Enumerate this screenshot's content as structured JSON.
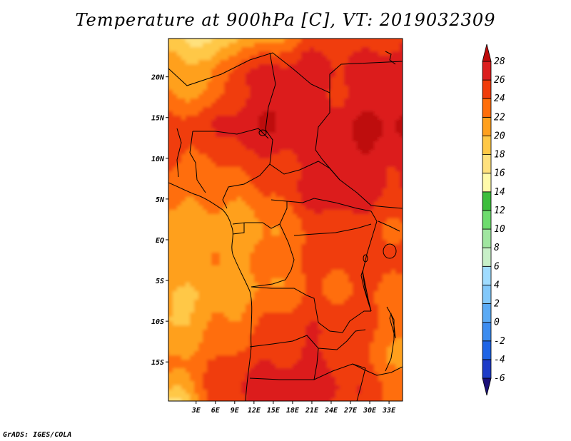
{
  "title": "Temperature at 900hPa [C], VT: 2019032309",
  "credit": "GrADS: IGES/COLA",
  "map": {
    "lon_range": [
      -1.3,
      35.1
    ],
    "lat_range": [
      -19.8,
      24.7
    ],
    "lon_ticks": [
      {
        "v": 3,
        "label": "3E"
      },
      {
        "v": 6,
        "label": "6E"
      },
      {
        "v": 9,
        "label": "9E"
      },
      {
        "v": 12,
        "label": "12E"
      },
      {
        "v": 15,
        "label": "15E"
      },
      {
        "v": 18,
        "label": "18E"
      },
      {
        "v": 21,
        "label": "21E"
      },
      {
        "v": 24,
        "label": "24E"
      },
      {
        "v": 27,
        "label": "27E"
      },
      {
        "v": 30,
        "label": "30E"
      },
      {
        "v": 33,
        "label": "33E"
      }
    ],
    "lat_ticks": [
      {
        "v": 20,
        "label": "20N"
      },
      {
        "v": 15,
        "label": "15N"
      },
      {
        "v": 10,
        "label": "10N"
      },
      {
        "v": 5,
        "label": "5N"
      },
      {
        "v": 0,
        "label": "EQ"
      },
      {
        "v": -5,
        "label": "5S"
      },
      {
        "v": -10,
        "label": "10S"
      },
      {
        "v": -15,
        "label": "15S"
      }
    ]
  },
  "colorbar": {
    "levels": [
      "-6",
      "-4",
      "-2",
      "0",
      "2",
      "4",
      "6",
      "8",
      "10",
      "12",
      "14",
      "16",
      "18",
      "20",
      "22",
      "24",
      "26",
      "28"
    ],
    "colors": [
      "#1a0f78",
      "#1e3cc8",
      "#1e64e6",
      "#3c8cf0",
      "#5aaaf5",
      "#82c8fa",
      "#a0dcff",
      "#c8f0c8",
      "#a0e6a0",
      "#6edc6e",
      "#3cbe3c",
      "#fffaaa",
      "#ffe17d",
      "#ffc846",
      "#ffa01e",
      "#ff6e0a",
      "#f03c0a",
      "#dc1e1e",
      "#be0a0a"
    ]
  },
  "temperature_field": {
    "units": "C",
    "lons": [
      0,
      5,
      10,
      15,
      20,
      25,
      30,
      35
    ],
    "lats": [
      25,
      20,
      15,
      10,
      5,
      0,
      -5,
      -10,
      -15,
      -20
    ],
    "values": [
      [
        19,
        17,
        21,
        21,
        25,
        25,
        25,
        26
      ],
      [
        21,
        21,
        26,
        27,
        27,
        26,
        27,
        27
      ],
      [
        24,
        25,
        27,
        28,
        27,
        27,
        28,
        28
      ],
      [
        25,
        24,
        26,
        26,
        27,
        27,
        28,
        27
      ],
      [
        22,
        22,
        22,
        23,
        26,
        27,
        26,
        25
      ],
      [
        21,
        21,
        21,
        22,
        24,
        25,
        25,
        24
      ],
      [
        21,
        21,
        22,
        22,
        24,
        24,
        25,
        24
      ],
      [
        19,
        21,
        22,
        24,
        25,
        25,
        24,
        22
      ],
      [
        23,
        24,
        26,
        26,
        27,
        26,
        24,
        22
      ],
      [
        17,
        24,
        26,
        27,
        27,
        26,
        25,
        23
      ]
    ]
  }
}
